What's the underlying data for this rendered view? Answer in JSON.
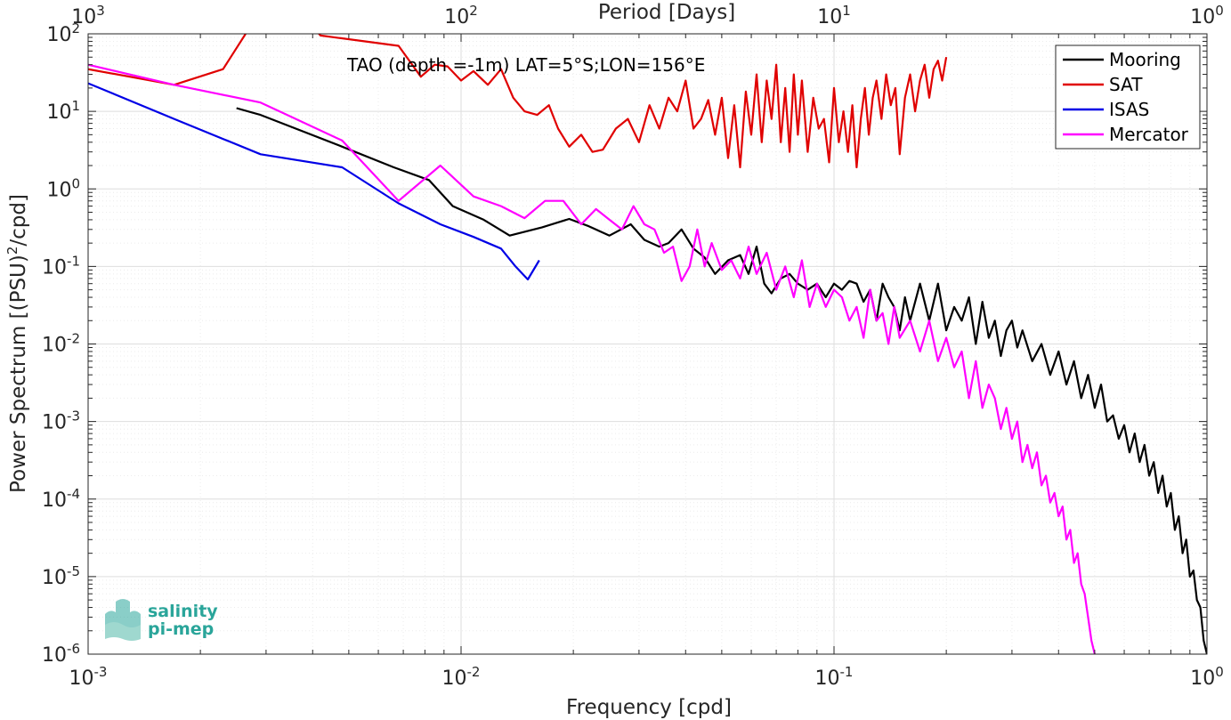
{
  "chart_data": {
    "type": "line",
    "title": "TAO (depth =-1m) LAT=5°S;LON=156°E",
    "xlabel": "Frequency [cpd]",
    "ylabel": "Power Spectrum [(PSU)",
    "ylabel_sup": "2",
    "ylabel_tail": "/cpd]",
    "top_xlabel": "Period [Days]",
    "xscale": "log",
    "yscale": "log",
    "xlim": [
      0.001,
      1
    ],
    "ylim": [
      1e-06,
      100
    ],
    "grid": true,
    "legend_position": "top-right",
    "x_ticks": [
      {
        "base": "10",
        "exp": "-3",
        "value": 0.001
      },
      {
        "base": "10",
        "exp": "-2",
        "value": 0.01
      },
      {
        "base": "10",
        "exp": "-1",
        "value": 0.1
      },
      {
        "base": "10",
        "exp": "0",
        "value": 1
      }
    ],
    "top_ticks": [
      {
        "base": "10",
        "exp": "3",
        "value": 0.001
      },
      {
        "base": "10",
        "exp": "2",
        "value": 0.01
      },
      {
        "base": "10",
        "exp": "1",
        "value": 0.1
      },
      {
        "base": "10",
        "exp": "0",
        "value": 1
      }
    ],
    "y_ticks": [
      {
        "base": "10",
        "exp": "2",
        "value": 100
      },
      {
        "base": "10",
        "exp": "1",
        "value": 10
      },
      {
        "base": "10",
        "exp": "0",
        "value": 1
      },
      {
        "base": "10",
        "exp": "-1",
        "value": 0.1
      },
      {
        "base": "10",
        "exp": "-2",
        "value": 0.01
      },
      {
        "base": "10",
        "exp": "-3",
        "value": 0.001
      },
      {
        "base": "10",
        "exp": "-4",
        "value": 0.0001
      },
      {
        "base": "10",
        "exp": "-5",
        "value": 1e-05
      },
      {
        "base": "10",
        "exp": "-6",
        "value": 1e-06
      }
    ],
    "series": [
      {
        "name": "Mooring",
        "color": "#000000",
        "x": [
          0.0025,
          0.0029,
          0.0048,
          0.0066,
          0.0082,
          0.0095,
          0.0115,
          0.0135,
          0.0165,
          0.0195,
          0.022,
          0.025,
          0.0285,
          0.031,
          0.034,
          0.036,
          0.039,
          0.042,
          0.045,
          0.048,
          0.052,
          0.056,
          0.059,
          0.062,
          0.065,
          0.068,
          0.072,
          0.076,
          0.08,
          0.085,
          0.09,
          0.095,
          0.1,
          0.105,
          0.11,
          0.115,
          0.12,
          0.125,
          0.13,
          0.135,
          0.14,
          0.145,
          0.15,
          0.155,
          0.16,
          0.17,
          0.18,
          0.19,
          0.2,
          0.21,
          0.22,
          0.23,
          0.24,
          0.25,
          0.26,
          0.27,
          0.28,
          0.29,
          0.3,
          0.31,
          0.32,
          0.34,
          0.36,
          0.38,
          0.4,
          0.42,
          0.44,
          0.46,
          0.48,
          0.5,
          0.52,
          0.54,
          0.56,
          0.58,
          0.6,
          0.62,
          0.64,
          0.66,
          0.68,
          0.7,
          0.72,
          0.74,
          0.76,
          0.78,
          0.8,
          0.82,
          0.84,
          0.86,
          0.88,
          0.9,
          0.92,
          0.94,
          0.96,
          0.98,
          1.0
        ],
        "y": [
          11,
          9,
          3.5,
          1.9,
          1.3,
          0.6,
          0.4,
          0.25,
          0.32,
          0.41,
          0.33,
          0.25,
          0.35,
          0.22,
          0.18,
          0.2,
          0.3,
          0.17,
          0.13,
          0.08,
          0.12,
          0.14,
          0.08,
          0.18,
          0.06,
          0.045,
          0.07,
          0.08,
          0.06,
          0.05,
          0.06,
          0.04,
          0.06,
          0.05,
          0.065,
          0.06,
          0.035,
          0.05,
          0.02,
          0.06,
          0.04,
          0.03,
          0.015,
          0.04,
          0.02,
          0.06,
          0.02,
          0.06,
          0.015,
          0.03,
          0.02,
          0.04,
          0.01,
          0.035,
          0.012,
          0.02,
          0.007,
          0.015,
          0.02,
          0.009,
          0.015,
          0.006,
          0.01,
          0.004,
          0.008,
          0.003,
          0.006,
          0.002,
          0.004,
          0.0015,
          0.003,
          0.001,
          0.0012,
          0.0006,
          0.0009,
          0.0004,
          0.0007,
          0.0003,
          0.0005,
          0.0002,
          0.0003,
          0.00012,
          0.0002,
          8e-05,
          0.00012,
          4e-05,
          6e-05,
          2e-05,
          3e-05,
          1e-05,
          1.2e-05,
          5e-06,
          4e-06,
          1.5e-06,
          1e-06
        ]
      },
      {
        "name": "SAT",
        "color": "#e00000",
        "x": [
          0.001,
          0.0017,
          0.0023,
          0.0029,
          0.0035,
          0.0042,
          0.0055,
          0.0068,
          0.0078,
          0.0085,
          0.0092,
          0.01,
          0.0108,
          0.0118,
          0.0128,
          0.0138,
          0.0148,
          0.016,
          0.0172,
          0.0182,
          0.0195,
          0.021,
          0.0225,
          0.024,
          0.026,
          0.028,
          0.03,
          0.032,
          0.034,
          0.036,
          0.038,
          0.04,
          0.042,
          0.044,
          0.046,
          0.048,
          0.05,
          0.052,
          0.054,
          0.056,
          0.058,
          0.06,
          0.062,
          0.064,
          0.066,
          0.068,
          0.07,
          0.072,
          0.074,
          0.076,
          0.078,
          0.08,
          0.082,
          0.085,
          0.088,
          0.091,
          0.094,
          0.097,
          0.1,
          0.103,
          0.106,
          0.109,
          0.112,
          0.115,
          0.118,
          0.121,
          0.124,
          0.127,
          0.13,
          0.134,
          0.138,
          0.142,
          0.146,
          0.15,
          0.155,
          0.16,
          0.165,
          0.17,
          0.175,
          0.18,
          0.185,
          0.19,
          0.195,
          0.2
        ],
        "y": [
          35,
          22,
          35,
          200,
          250,
          95,
          80,
          70,
          28,
          40,
          38,
          25,
          33,
          22,
          35,
          15,
          10,
          9,
          12,
          6,
          3.5,
          5,
          3,
          3.2,
          6,
          8,
          4,
          12,
          6,
          15,
          10,
          25,
          6,
          8,
          14,
          5,
          15,
          2.5,
          12,
          1.9,
          18,
          5,
          30,
          4,
          25,
          8,
          40,
          4,
          20,
          3,
          30,
          5,
          25,
          3,
          15,
          6,
          8,
          2.2,
          20,
          4,
          10,
          3,
          12,
          1.9,
          8,
          20,
          5,
          15,
          25,
          8,
          30,
          12,
          20,
          2.8,
          15,
          30,
          10,
          25,
          40,
          15,
          35,
          45,
          25,
          50
        ]
      },
      {
        "name": "ISAS",
        "color": "#0000e6",
        "x": [
          0.001,
          0.0017,
          0.0029,
          0.0048,
          0.0068,
          0.0088,
          0.0108,
          0.0128,
          0.014,
          0.0151,
          0.0162
        ],
        "y": [
          23,
          8,
          2.8,
          1.9,
          0.65,
          0.35,
          0.24,
          0.17,
          0.1,
          0.068,
          0.12
        ]
      },
      {
        "name": "Mercator",
        "color": "#ff00ff",
        "x": [
          0.001,
          0.0017,
          0.0029,
          0.0048,
          0.0068,
          0.0088,
          0.0108,
          0.0128,
          0.0148,
          0.0168,
          0.0188,
          0.021,
          0.023,
          0.025,
          0.027,
          0.029,
          0.031,
          0.033,
          0.035,
          0.037,
          0.039,
          0.041,
          0.043,
          0.045,
          0.047,
          0.05,
          0.053,
          0.056,
          0.059,
          0.062,
          0.066,
          0.07,
          0.074,
          0.078,
          0.082,
          0.086,
          0.09,
          0.095,
          0.1,
          0.105,
          0.11,
          0.115,
          0.12,
          0.125,
          0.13,
          0.135,
          0.14,
          0.145,
          0.15,
          0.16,
          0.17,
          0.18,
          0.19,
          0.2,
          0.21,
          0.22,
          0.23,
          0.24,
          0.25,
          0.26,
          0.27,
          0.28,
          0.29,
          0.3,
          0.31,
          0.32,
          0.33,
          0.34,
          0.35,
          0.36,
          0.37,
          0.38,
          0.39,
          0.4,
          0.41,
          0.42,
          0.43,
          0.44,
          0.45,
          0.46,
          0.47,
          0.48,
          0.49,
          0.5
        ],
        "y": [
          40,
          22,
          13,
          4.2,
          0.7,
          2,
          0.8,
          0.6,
          0.42,
          0.7,
          0.7,
          0.35,
          0.55,
          0.4,
          0.3,
          0.6,
          0.35,
          0.3,
          0.15,
          0.18,
          0.065,
          0.1,
          0.3,
          0.1,
          0.2,
          0.09,
          0.12,
          0.07,
          0.18,
          0.08,
          0.15,
          0.05,
          0.1,
          0.04,
          0.12,
          0.03,
          0.06,
          0.03,
          0.05,
          0.04,
          0.02,
          0.03,
          0.012,
          0.05,
          0.02,
          0.025,
          0.01,
          0.03,
          0.012,
          0.02,
          0.008,
          0.02,
          0.006,
          0.012,
          0.005,
          0.008,
          0.002,
          0.006,
          0.0015,
          0.003,
          0.002,
          0.0008,
          0.0015,
          0.0006,
          0.001,
          0.0003,
          0.0005,
          0.00025,
          0.0004,
          0.00015,
          0.0002,
          9e-05,
          0.00012,
          6e-05,
          8e-05,
          3e-05,
          4e-05,
          1.5e-05,
          2e-05,
          8e-06,
          6e-06,
          3e-06,
          1.5e-06,
          1e-06
        ]
      }
    ],
    "logo": {
      "line1": "salinity",
      "line2": "pi-mep"
    }
  }
}
